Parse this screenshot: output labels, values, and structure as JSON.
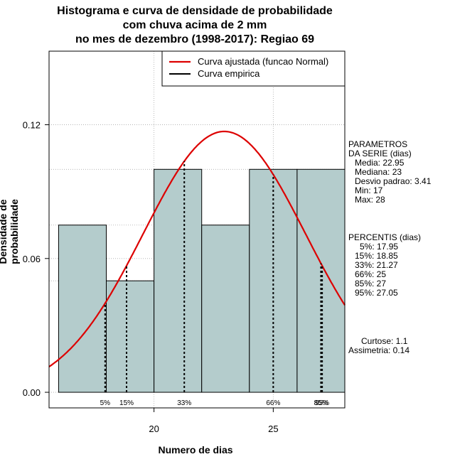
{
  "title_lines": [
    "Histograma e curva de densidade de probabilidade",
    "com chuva acima de 2 mm",
    "no mes de dezembro (1998-2017): Regiao 69"
  ],
  "xlabel": "Numero de dias",
  "ylabel": "Densidade de probabilidade",
  "legend": {
    "fitted": "Curva ajustada (funcao Normal)",
    "empirical": "Curva empirica"
  },
  "parametros": {
    "heading_line1": "PARAMETROS",
    "heading_line2": "DA SERIE (dias)",
    "media": "Media: 22.95",
    "mediana": "Mediana: 23",
    "desvio": "Desvio padrao: 3.41",
    "min": "Min: 17",
    "max": "Max: 28"
  },
  "percentis": {
    "heading": "PERCENTIS (dias)",
    "p5": "5%: 17.95",
    "p15": "15%: 18.85",
    "p33": "33%: 21.27",
    "p66": "66%: 25",
    "p85": "85%: 27",
    "p95": "95%: 27.05"
  },
  "stats": {
    "curtose": "Curtose: 1.1",
    "assimetria": "Assimetria: 0.14"
  },
  "colors": {
    "bar_fill": "#b4cccc",
    "curve": "#dd0000",
    "grid": "#aaaaaa"
  },
  "chart_data": {
    "type": "bar",
    "subtype": "histogram_with_normal_fit",
    "title": "Histograma e curva de densidade de probabilidade com chuva acima de 2 mm no mes de dezembro (1998-2017): Regiao 69",
    "xlabel": "Numero de dias",
    "ylabel": "Densidade de probabilidade",
    "xlim": [
      15.6,
      28.0
    ],
    "ylim": [
      -0.007,
      0.153
    ],
    "x_ticks": [
      20,
      25
    ],
    "x_tick_labels": [
      "20",
      "25"
    ],
    "y_ticks": [
      0.0,
      0.06,
      0.12
    ],
    "y_tick_labels": [
      "0.00",
      "0.06",
      "0.12"
    ],
    "grid": true,
    "bins": [
      {
        "start": 16,
        "end": 18,
        "density": 0.075
      },
      {
        "start": 18,
        "end": 20,
        "density": 0.05
      },
      {
        "start": 20,
        "end": 22,
        "density": 0.1
      },
      {
        "start": 22,
        "end": 24,
        "density": 0.075
      },
      {
        "start": 24,
        "end": 26,
        "density": 0.1
      },
      {
        "start": 26,
        "end": 28,
        "density": 0.1
      }
    ],
    "normal_fit": {
      "mean": 22.95,
      "sd": 3.41
    },
    "percentile_lines": [
      {
        "label": "5%",
        "x": 17.95
      },
      {
        "label": "15%",
        "x": 18.85
      },
      {
        "label": "33%",
        "x": 21.27
      },
      {
        "label": "66%",
        "x": 25.0
      },
      {
        "label": "85%",
        "x": 27.0
      },
      {
        "label": "95%",
        "x": 27.05
      }
    ],
    "legend_position": "top-right"
  }
}
